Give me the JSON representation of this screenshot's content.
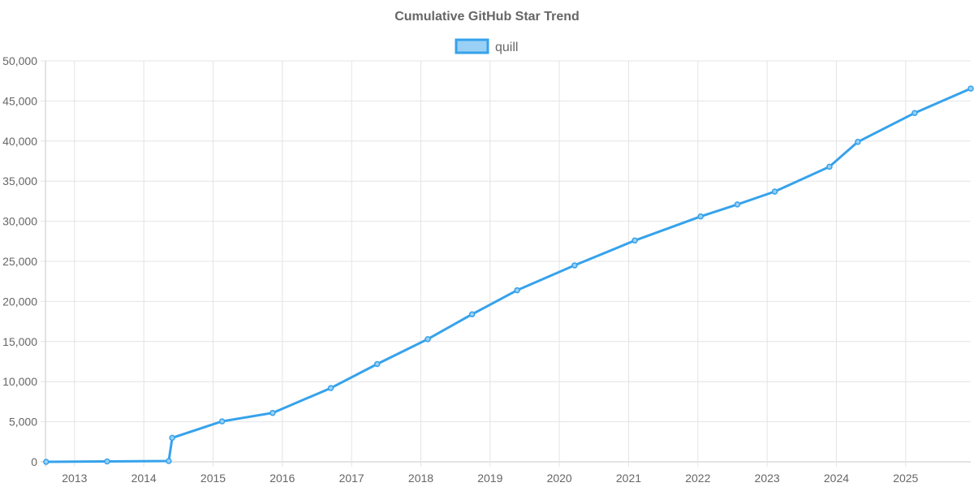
{
  "chart_data": {
    "type": "line",
    "title": "Cumulative GitHub Star Trend",
    "xlabel": "",
    "ylabel": "",
    "xlim": [
      2012.58,
      2025.94
    ],
    "ylim": [
      0,
      50000
    ],
    "grid": true,
    "legend_position": "top-center",
    "x_ticks": [
      "2013",
      "2014",
      "2015",
      "2016",
      "2017",
      "2018",
      "2019",
      "2020",
      "2021",
      "2022",
      "2023",
      "2024",
      "2025"
    ],
    "y_ticks": [
      "0",
      "5,000",
      "10,000",
      "15,000",
      "20,000",
      "25,000",
      "30,000",
      "35,000",
      "40,000",
      "45,000",
      "50,000"
    ],
    "series": [
      {
        "name": "quill",
        "color": "#36a2eb",
        "fill": "#9ad0f5",
        "x": [
          2012.59,
          2013.47,
          2014.36,
          2014.41,
          2015.13,
          2015.86,
          2016.7,
          2017.37,
          2018.1,
          2018.74,
          2019.39,
          2020.22,
          2021.09,
          2022.04,
          2022.57,
          2023.11,
          2023.9,
          2024.31,
          2025.13,
          2025.94
        ],
        "values": [
          0,
          50,
          100,
          3000,
          5050,
          6100,
          9200,
          12200,
          15300,
          18400,
          21400,
          24500,
          27600,
          30600,
          32100,
          33700,
          36800,
          39900,
          43500,
          46550
        ]
      }
    ]
  }
}
